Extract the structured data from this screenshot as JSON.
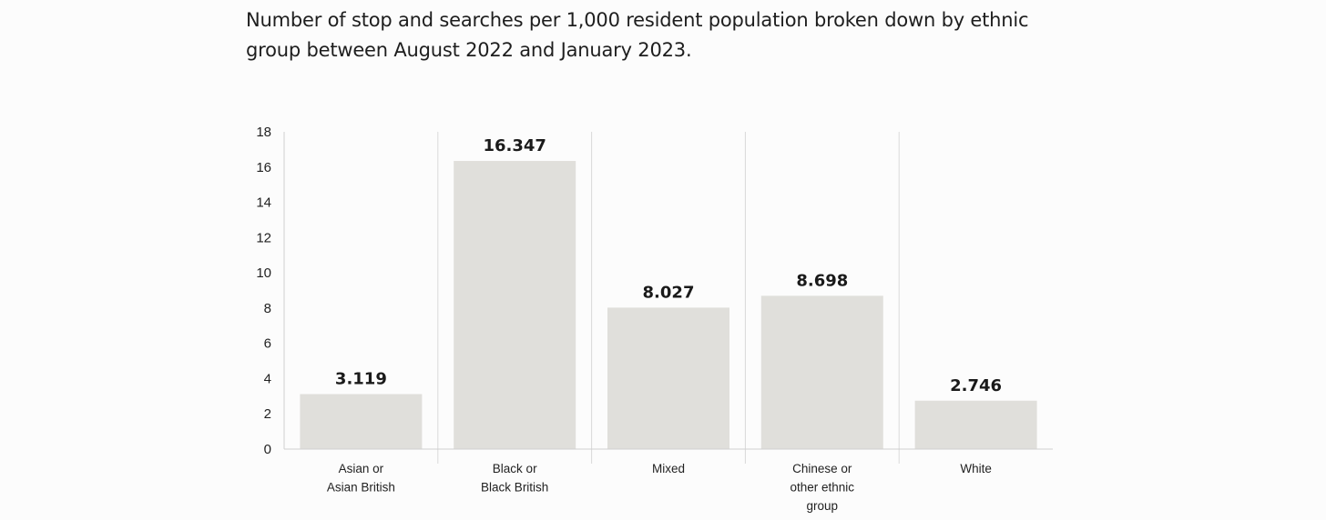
{
  "page": {
    "title": "Number of stop and searches per 1,000 resident population broken down by ethnic group between August 2022 and January 2023."
  },
  "chart_data": {
    "type": "bar",
    "title": "Number of stop and searches per 1,000 resident population broken down by ethnic group between August 2022 and January 2023.",
    "xlabel": "",
    "ylabel": "",
    "categories": [
      [
        "Asian or",
        "Asian British"
      ],
      [
        "Black or",
        "Black British"
      ],
      [
        "Mixed"
      ],
      [
        "Chinese or",
        "other ethnic",
        "group"
      ],
      [
        "White"
      ]
    ],
    "values": [
      3.119,
      16.347,
      8.027,
      8.698,
      2.746
    ],
    "value_labels": [
      "3.119",
      "16.347",
      "8.027",
      "8.698",
      "2.746"
    ],
    "ylim": [
      0,
      18
    ],
    "yticks": [
      0,
      2,
      4,
      6,
      8,
      10,
      12,
      14,
      16,
      18
    ],
    "grid": false,
    "legend": "none",
    "colors": {
      "bar": "#e0dfdb",
      "axis": "#cfcfcf",
      "separator": "#d9d9d9"
    }
  }
}
